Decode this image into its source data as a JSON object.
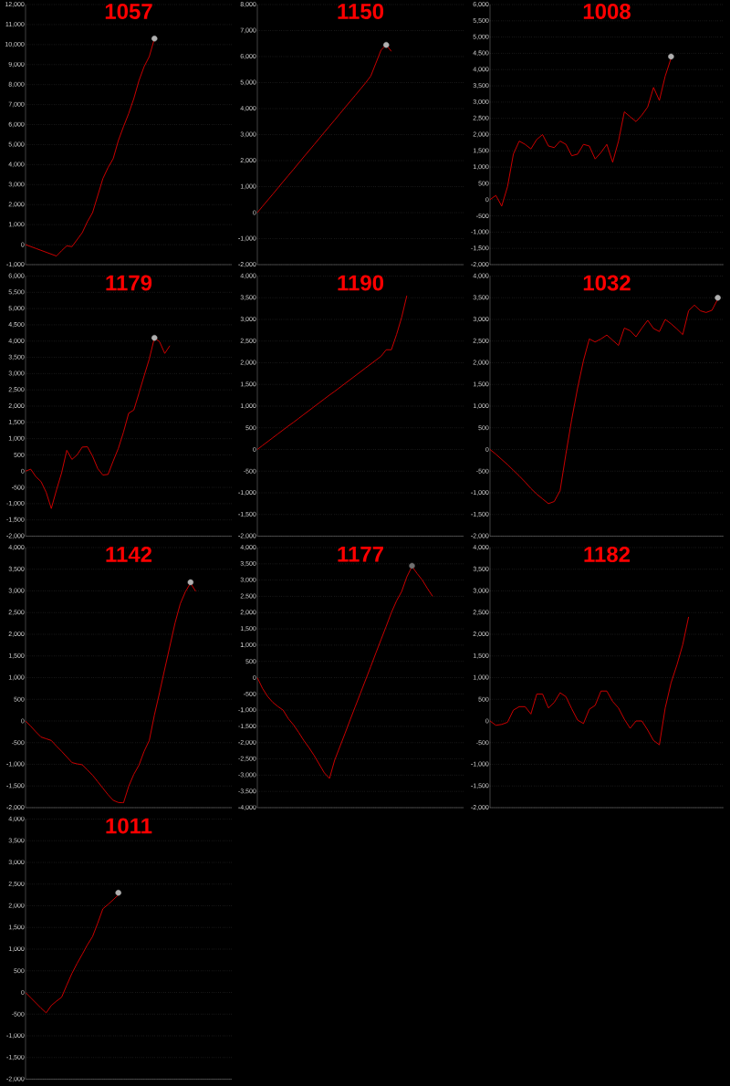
{
  "chart_data": [
    {
      "type": "line",
      "title": "1057",
      "grid": "y",
      "tick_labels": "y",
      "categories": [
        null,
        null,
        null,
        null,
        null,
        null,
        null,
        null,
        null,
        null,
        null,
        null,
        null,
        null,
        null,
        null,
        null,
        null,
        null,
        null,
        null,
        null,
        null,
        null,
        null,
        null,
        null,
        null,
        null,
        null,
        null,
        null,
        null,
        null,
        null,
        null,
        null,
        null,
        null,
        null,
        null
      ],
      "series": [
        {
          "type": "line",
          "color": "#e00000",
          "values": [
            0,
            -95,
            -190,
            -285,
            -380,
            -475,
            -570,
            -300,
            -60,
            -100,
            250,
            600,
            1150,
            1600,
            2450,
            3300,
            3850,
            4300,
            5200,
            5900,
            6550,
            7300,
            8200,
            8900,
            9400,
            10300,
            null,
            null,
            null,
            null,
            null,
            null,
            null,
            null,
            null,
            null,
            null,
            null,
            null,
            null,
            null
          ]
        },
        {
          "type": "scatter",
          "marker": "circle",
          "color": "#b0b0b0",
          "values": [
            null,
            null,
            null,
            null,
            null,
            null,
            null,
            null,
            null,
            null,
            null,
            null,
            null,
            null,
            null,
            null,
            null,
            null,
            null,
            null,
            null,
            null,
            null,
            null,
            null,
            10300,
            null,
            null,
            null,
            null,
            null,
            null,
            null,
            null,
            null,
            null,
            null,
            null,
            null,
            null,
            null
          ]
        }
      ],
      "ylim": [
        -1000,
        12000
      ],
      "yticks": [
        {
          "value": -1000,
          "label": "-1,000"
        },
        0,
        {
          "value": 1000,
          "label": "1,000"
        },
        {
          "value": 2000,
          "label": "2,000"
        },
        {
          "value": 3000,
          "label": "3,000"
        },
        {
          "value": 4000,
          "label": "4,000"
        },
        {
          "value": 5000,
          "label": "5,000"
        },
        {
          "value": 6000,
          "label": "6,000"
        },
        {
          "value": 7000,
          "label": "7,000"
        },
        {
          "value": 8000,
          "label": "8,000"
        },
        {
          "value": 9000,
          "label": "9,000"
        },
        {
          "value": 10000,
          "label": "10,000"
        },
        {
          "value": 11000,
          "label": "11,000"
        },
        {
          "value": 12000,
          "label": "12,000"
        }
      ]
    },
    {
      "type": "line",
      "title": "1150",
      "grid": "y",
      "tick_labels": "y",
      "categories": [
        null,
        null,
        null,
        null,
        null,
        null,
        null,
        null,
        null,
        null,
        null,
        null,
        null,
        null,
        null,
        null,
        null,
        null,
        null,
        null,
        null,
        null,
        null,
        null,
        null,
        null,
        null,
        null,
        null,
        null,
        null,
        null,
        null,
        null,
        null,
        null,
        null,
        null,
        null,
        null,
        null
      ],
      "series": [
        {
          "type": "line",
          "color": "#e00000",
          "values": [
            0,
            240,
            475,
            710,
            950,
            1190,
            1425,
            1660,
            1900,
            2140,
            2375,
            2610,
            2850,
            3090,
            3325,
            3560,
            3800,
            4040,
            4275,
            4510,
            4750,
            4990,
            5250,
            5750,
            6250,
            6450,
            6200,
            null,
            null,
            null,
            null,
            null,
            null,
            null,
            null,
            null,
            null,
            null,
            null,
            null,
            null
          ]
        },
        {
          "type": "scatter",
          "marker": "circle",
          "color": "#b0b0b0",
          "values": [
            null,
            null,
            null,
            null,
            null,
            null,
            null,
            null,
            null,
            null,
            null,
            null,
            null,
            null,
            null,
            null,
            null,
            null,
            null,
            null,
            null,
            null,
            null,
            null,
            null,
            6450,
            null,
            null,
            null,
            null,
            null,
            null,
            null,
            null,
            null,
            null,
            null,
            null,
            null,
            null,
            null
          ]
        }
      ],
      "ylim": [
        -2000,
        8000
      ],
      "yticks": [
        {
          "value": -2000,
          "label": "-2,000"
        },
        {
          "value": -1000,
          "label": "-1,000"
        },
        0,
        {
          "value": 1000,
          "label": "1,000"
        },
        {
          "value": 2000,
          "label": "2,000"
        },
        {
          "value": 3000,
          "label": "3,000"
        },
        {
          "value": 4000,
          "label": "4,000"
        },
        {
          "value": 5000,
          "label": "5,000"
        },
        {
          "value": 6000,
          "label": "6,000"
        },
        {
          "value": 7000,
          "label": "7,000"
        },
        {
          "value": 8000,
          "label": "8,000"
        }
      ]
    },
    {
      "type": "line",
      "title": "1008",
      "grid": "y",
      "tick_labels": "y",
      "categories": [
        null,
        null,
        null,
        null,
        null,
        null,
        null,
        null,
        null,
        null,
        null,
        null,
        null,
        null,
        null,
        null,
        null,
        null,
        null,
        null,
        null,
        null,
        null,
        null,
        null,
        null,
        null,
        null,
        null,
        null,
        null,
        null,
        null,
        null,
        null,
        null,
        null,
        null,
        null,
        null,
        null
      ],
      "series": [
        {
          "type": "line",
          "color": "#e00000",
          "values": [
            0,
            130,
            -200,
            400,
            1400,
            1800,
            1700,
            1560,
            1850,
            2000,
            1650,
            1600,
            1800,
            1700,
            1350,
            1400,
            1700,
            1650,
            1250,
            1450,
            1700,
            1150,
            1800,
            2700,
            2550,
            2400,
            2600,
            2850,
            3450,
            3050,
            3800,
            4350,
            null,
            null,
            null,
            null,
            null,
            null,
            null,
            null,
            null
          ]
        },
        {
          "type": "scatter",
          "marker": "circle",
          "color": "#b0b0b0",
          "values": [
            null,
            null,
            null,
            null,
            null,
            null,
            null,
            null,
            null,
            null,
            null,
            null,
            null,
            null,
            null,
            null,
            null,
            null,
            null,
            null,
            null,
            null,
            null,
            null,
            null,
            null,
            null,
            null,
            null,
            null,
            null,
            4400,
            null,
            null,
            null,
            null,
            null,
            null,
            null,
            null,
            null
          ]
        }
      ],
      "ylim": [
        -2000,
        6000
      ],
      "yticks": [
        {
          "value": -2000,
          "label": "-2,000"
        },
        {
          "value": -1500,
          "label": "-1,500"
        },
        {
          "value": -1000,
          "label": "-1,000"
        },
        -500,
        0,
        500,
        {
          "value": 1000,
          "label": "1,000"
        },
        {
          "value": 1500,
          "label": "1,500"
        },
        {
          "value": 2000,
          "label": "2,000"
        },
        {
          "value": 2500,
          "label": "2,500"
        },
        {
          "value": 3000,
          "label": "3,000"
        },
        {
          "value": 3500,
          "label": "3,500"
        },
        {
          "value": 4000,
          "label": "4,000"
        },
        {
          "value": 4500,
          "label": "4,500"
        },
        {
          "value": 5000,
          "label": "5,000"
        },
        {
          "value": 5500,
          "label": "5,500"
        },
        {
          "value": 6000,
          "label": "6,000"
        }
      ]
    },
    {
      "type": "line",
      "title": "1179",
      "grid": "y",
      "tick_labels": "y",
      "categories": [
        null,
        null,
        null,
        null,
        null,
        null,
        null,
        null,
        null,
        null,
        null,
        null,
        null,
        null,
        null,
        null,
        null,
        null,
        null,
        null,
        null,
        null,
        null,
        null,
        null,
        null,
        null,
        null,
        null,
        null,
        null,
        null,
        null,
        null,
        null,
        null,
        null,
        null,
        null,
        null,
        null
      ],
      "series": [
        {
          "type": "line",
          "color": "#e00000",
          "values": [
            0,
            60,
            -170,
            -320,
            -650,
            -1150,
            -580,
            -50,
            640,
            360,
            500,
            740,
            750,
            460,
            80,
            -120,
            -100,
            310,
            700,
            1200,
            1780,
            1880,
            2400,
            2930,
            3450,
            4100,
            3980,
            3620,
            3860,
            null,
            null,
            null,
            null,
            null,
            null,
            null,
            null,
            null,
            null,
            null,
            null
          ]
        },
        {
          "type": "scatter",
          "marker": "circle",
          "color": "#b0b0b0",
          "values": [
            null,
            null,
            null,
            null,
            null,
            null,
            null,
            null,
            null,
            null,
            null,
            null,
            null,
            null,
            null,
            null,
            null,
            null,
            null,
            null,
            null,
            null,
            null,
            null,
            null,
            4100,
            null,
            null,
            null,
            null,
            null,
            null,
            null,
            null,
            null,
            null,
            null,
            null,
            null,
            null,
            null
          ]
        }
      ],
      "ylim": [
        -2000,
        6000
      ],
      "yticks": [
        {
          "value": -2000,
          "label": "-2,000"
        },
        {
          "value": -1500,
          "label": "-1,500"
        },
        {
          "value": -1000,
          "label": "-1,000"
        },
        -500,
        0,
        500,
        {
          "value": 1000,
          "label": "1,000"
        },
        {
          "value": 1500,
          "label": "1,500"
        },
        {
          "value": 2000,
          "label": "2,000"
        },
        {
          "value": 2500,
          "label": "2,500"
        },
        {
          "value": 3000,
          "label": "3,000"
        },
        {
          "value": 3500,
          "label": "3,500"
        },
        {
          "value": 4000,
          "label": "4,000"
        },
        {
          "value": 4500,
          "label": "4,500"
        },
        {
          "value": 5000,
          "label": "5,000"
        },
        {
          "value": 5500,
          "label": "5,500"
        },
        {
          "value": 6000,
          "label": "6,000"
        }
      ]
    },
    {
      "type": "line",
      "title": "1190",
      "grid": "y",
      "tick_labels": "y",
      "categories": [
        null,
        null,
        null,
        null,
        null,
        null,
        null,
        null,
        null,
        null,
        null,
        null,
        null,
        null,
        null,
        null,
        null,
        null,
        null,
        null,
        null,
        null,
        null,
        null,
        null,
        null,
        null,
        null,
        null,
        null,
        null,
        null,
        null,
        null,
        null,
        null,
        null,
        null,
        null,
        null,
        null
      ],
      "series": [
        {
          "type": "line",
          "color": "#e00000",
          "values": [
            0,
            90,
            180,
            270,
            360,
            450,
            540,
            625,
            715,
            805,
            895,
            985,
            1075,
            1165,
            1255,
            1340,
            1430,
            1520,
            1610,
            1700,
            1790,
            1880,
            1970,
            2060,
            2150,
            2300,
            2300,
            2650,
            3050,
            3550,
            null,
            null,
            null,
            null,
            null,
            null,
            null,
            null,
            null,
            null,
            null
          ]
        }
      ],
      "ylim": [
        -2000,
        4000
      ],
      "yticks": [
        {
          "value": -2000,
          "label": "-2,000"
        },
        {
          "value": -1500,
          "label": "-1,500"
        },
        {
          "value": -1000,
          "label": "-1,000"
        },
        -500,
        0,
        500,
        {
          "value": 1000,
          "label": "1,000"
        },
        {
          "value": 1500,
          "label": "1,500"
        },
        {
          "value": 2000,
          "label": "2,000"
        },
        {
          "value": 2500,
          "label": "2,500"
        },
        {
          "value": 3000,
          "label": "3,000"
        },
        {
          "value": 3500,
          "label": "3,500"
        },
        {
          "value": 4000,
          "label": "4,000"
        }
      ]
    },
    {
      "type": "line",
      "title": "1032",
      "grid": "y",
      "tick_labels": "y",
      "categories": [
        null,
        null,
        null,
        null,
        null,
        null,
        null,
        null,
        null,
        null,
        null,
        null,
        null,
        null,
        null,
        null,
        null,
        null,
        null,
        null,
        null,
        null,
        null,
        null,
        null,
        null,
        null,
        null,
        null,
        null,
        null,
        null,
        null,
        null,
        null,
        null,
        null,
        null,
        null,
        null,
        null
      ],
      "series": [
        {
          "type": "line",
          "color": "#e00000",
          "values": [
            0,
            -110,
            -230,
            -350,
            -480,
            -610,
            -750,
            -900,
            -1030,
            -1140,
            -1250,
            -1200,
            -950,
            -100,
            700,
            1420,
            2050,
            2550,
            2480,
            2550,
            2640,
            2520,
            2400,
            2800,
            2740,
            2600,
            2800,
            2980,
            2790,
            2720,
            3000,
            2900,
            2780,
            2650,
            3200,
            3330,
            3200,
            3160,
            3210,
            3470,
            null
          ]
        },
        {
          "type": "scatter",
          "marker": "circle",
          "color": "#b0b0b0",
          "values": [
            null,
            null,
            null,
            null,
            null,
            null,
            null,
            null,
            null,
            null,
            null,
            null,
            null,
            null,
            null,
            null,
            null,
            null,
            null,
            null,
            null,
            null,
            null,
            null,
            null,
            null,
            null,
            null,
            null,
            null,
            null,
            null,
            null,
            null,
            null,
            null,
            null,
            null,
            null,
            3500,
            null
          ]
        }
      ],
      "ylim": [
        -2000,
        4000
      ],
      "yticks": [
        {
          "value": -2000,
          "label": "-2,000"
        },
        {
          "value": -1500,
          "label": "-1,500"
        },
        {
          "value": -1000,
          "label": "-1,000"
        },
        -500,
        0,
        500,
        {
          "value": 1000,
          "label": "1,000"
        },
        {
          "value": 1500,
          "label": "1,500"
        },
        {
          "value": 2000,
          "label": "2,000"
        },
        {
          "value": 2500,
          "label": "2,500"
        },
        {
          "value": 3000,
          "label": "3,000"
        },
        {
          "value": 3500,
          "label": "3,500"
        },
        {
          "value": 4000,
          "label": "4,000"
        }
      ]
    },
    {
      "type": "line",
      "title": "1142",
      "grid": "y",
      "tick_labels": "y",
      "categories": [
        null,
        null,
        null,
        null,
        null,
        null,
        null,
        null,
        null,
        null,
        null,
        null,
        null,
        null,
        null,
        null,
        null,
        null,
        null,
        null,
        null,
        null,
        null,
        null,
        null,
        null,
        null,
        null,
        null,
        null,
        null,
        null,
        null,
        null,
        null,
        null,
        null,
        null,
        null,
        null,
        null
      ],
      "series": [
        {
          "type": "line",
          "color": "#e00000",
          "values": [
            0,
            -120,
            -250,
            -370,
            -410,
            -450,
            -580,
            -700,
            -830,
            -960,
            -990,
            -1010,
            -1130,
            -1250,
            -1400,
            -1550,
            -1700,
            -1830,
            -1880,
            -1890,
            -1510,
            -1230,
            -1020,
            -700,
            -450,
            140,
            660,
            1200,
            1730,
            2260,
            2700,
            2980,
            3180,
            2990,
            null,
            null,
            null,
            null,
            null,
            null,
            null
          ]
        },
        {
          "type": "scatter",
          "marker": "circle",
          "color": "#b0b0b0",
          "values": [
            null,
            null,
            null,
            null,
            null,
            null,
            null,
            null,
            null,
            null,
            null,
            null,
            null,
            null,
            null,
            null,
            null,
            null,
            null,
            null,
            null,
            null,
            null,
            null,
            null,
            null,
            null,
            null,
            null,
            null,
            null,
            null,
            3200,
            null,
            null,
            null,
            null,
            null,
            null,
            null,
            null
          ]
        }
      ],
      "ylim": [
        -2000,
        4000
      ],
      "yticks": [
        {
          "value": -2000,
          "label": "-2,000"
        },
        {
          "value": -1500,
          "label": "-1,500"
        },
        {
          "value": -1000,
          "label": "-1,000"
        },
        -500,
        0,
        500,
        {
          "value": 1000,
          "label": "1,000"
        },
        {
          "value": 1500,
          "label": "1,500"
        },
        {
          "value": 2000,
          "label": "2,000"
        },
        {
          "value": 2500,
          "label": "2,500"
        },
        {
          "value": 3000,
          "label": "3,000"
        },
        {
          "value": 3500,
          "label": "3,500"
        },
        {
          "value": 4000,
          "label": "4,000"
        }
      ]
    },
    {
      "type": "line",
      "title": "1177",
      "grid": "y",
      "tick_labels": "y",
      "categories": [
        null,
        null,
        null,
        null,
        null,
        null,
        null,
        null,
        null,
        null,
        null,
        null,
        null,
        null,
        null,
        null,
        null,
        null,
        null,
        null,
        null,
        null,
        null,
        null,
        null,
        null,
        null,
        null,
        null,
        null,
        null,
        null,
        null,
        null,
        null,
        null,
        null,
        null,
        null,
        null,
        null
      ],
      "series": [
        {
          "type": "line",
          "color": "#e00000",
          "values": [
            0,
            -330,
            -580,
            -760,
            -890,
            -1000,
            -1260,
            -1450,
            -1680,
            -1930,
            -2150,
            -2390,
            -2660,
            -2930,
            -3100,
            -2540,
            -2130,
            -1720,
            -1300,
            -890,
            -480,
            -70,
            340,
            760,
            1170,
            1580,
            2000,
            2360,
            2650,
            3100,
            3420,
            3200,
            3000,
            2740,
            2500,
            null,
            null,
            null,
            null,
            null,
            null
          ]
        },
        {
          "type": "scatter",
          "marker": "circle",
          "color": "#707070",
          "values": [
            null,
            null,
            null,
            null,
            null,
            null,
            null,
            null,
            null,
            null,
            null,
            null,
            null,
            null,
            null,
            null,
            null,
            null,
            null,
            null,
            null,
            null,
            null,
            null,
            null,
            null,
            null,
            null,
            null,
            null,
            3440,
            null,
            null,
            null,
            null,
            null,
            null,
            null,
            null,
            null,
            null
          ]
        }
      ],
      "ylim": [
        -4000,
        4000
      ],
      "yticks": [
        {
          "value": -4000,
          "label": "-4,000"
        },
        {
          "value": -3500,
          "label": "-3,500"
        },
        {
          "value": -3000,
          "label": "-3,000"
        },
        {
          "value": -2500,
          "label": "-2,500"
        },
        {
          "value": -2000,
          "label": "-2,000"
        },
        {
          "value": -1500,
          "label": "-1,500"
        },
        {
          "value": -1000,
          "label": "-1,000"
        },
        -500,
        0,
        500,
        {
          "value": 1000,
          "label": "1,000"
        },
        {
          "value": 1500,
          "label": "1,500"
        },
        {
          "value": 2000,
          "label": "2,000"
        },
        {
          "value": 2500,
          "label": "2,500"
        },
        {
          "value": 3000,
          "label": "3,000"
        },
        {
          "value": 3500,
          "label": "3,500"
        },
        {
          "value": 4000,
          "label": "4,000"
        }
      ]
    },
    {
      "type": "line",
      "title": "1182",
      "grid": "y",
      "tick_labels": "y",
      "categories": [
        null,
        null,
        null,
        null,
        null,
        null,
        null,
        null,
        null,
        null,
        null,
        null,
        null,
        null,
        null,
        null,
        null,
        null,
        null,
        null,
        null,
        null,
        null,
        null,
        null,
        null,
        null,
        null,
        null,
        null,
        null,
        null,
        null,
        null,
        null,
        null,
        null,
        null,
        null,
        null,
        null
      ],
      "series": [
        {
          "type": "line",
          "color": "#e00000",
          "values": [
            0,
            -100,
            -80,
            -30,
            250,
            330,
            330,
            160,
            620,
            620,
            300,
            430,
            650,
            560,
            280,
            20,
            -60,
            270,
            360,
            690,
            690,
            450,
            300,
            40,
            -170,
            0,
            0,
            -210,
            -450,
            -550,
            300,
            880,
            1290,
            1760,
            2400,
            null,
            null,
            null,
            null,
            null,
            null
          ]
        }
      ],
      "ylim": [
        -2000,
        4000
      ],
      "yticks": [
        {
          "value": -2000,
          "label": "-2,000"
        },
        {
          "value": -1500,
          "label": "-1,500"
        },
        {
          "value": -1000,
          "label": "-1,000"
        },
        -500,
        0,
        500,
        {
          "value": 1000,
          "label": "1,000"
        },
        {
          "value": 1500,
          "label": "1,500"
        },
        {
          "value": 2000,
          "label": "2,000"
        },
        {
          "value": 2500,
          "label": "2,500"
        },
        {
          "value": 3000,
          "label": "3,000"
        },
        {
          "value": 3500,
          "label": "3,500"
        },
        {
          "value": 4000,
          "label": "4,000"
        }
      ]
    },
    {
      "type": "line",
      "title": "1011",
      "grid": "y",
      "tick_labels": "y",
      "categories": [
        null,
        null,
        null,
        null,
        null,
        null,
        null,
        null,
        null,
        null,
        null,
        null,
        null,
        null,
        null,
        null,
        null,
        null,
        null,
        null,
        null,
        null,
        null,
        null,
        null,
        null,
        null,
        null,
        null,
        null,
        null,
        null,
        null,
        null,
        null,
        null,
        null,
        null,
        null,
        null,
        null
      ],
      "series": [
        {
          "type": "line",
          "color": "#e00000",
          "values": [
            0,
            -120,
            -240,
            -360,
            -470,
            -300,
            -200,
            -110,
            170,
            440,
            670,
            880,
            1100,
            1290,
            1600,
            1930,
            2030,
            2140,
            2250,
            null,
            null,
            null,
            null,
            null,
            null,
            null,
            null,
            null,
            null,
            null,
            null,
            null,
            null,
            null,
            null,
            null,
            null,
            null,
            null,
            null,
            null
          ]
        },
        {
          "type": "scatter",
          "marker": "circle",
          "color": "#b0b0b0",
          "values": [
            null,
            null,
            null,
            null,
            null,
            null,
            null,
            null,
            null,
            null,
            null,
            null,
            null,
            null,
            null,
            null,
            null,
            null,
            2300,
            null,
            null,
            null,
            null,
            null,
            null,
            null,
            null,
            null,
            null,
            null,
            null,
            null,
            null,
            null,
            null,
            null,
            null,
            null,
            null,
            null,
            null
          ]
        }
      ],
      "ylim": [
        -2000,
        4000
      ],
      "yticks": [
        {
          "value": -2000,
          "label": "-2,000"
        },
        {
          "value": -1500,
          "label": "-1,500"
        },
        {
          "value": -1000,
          "label": "-1,000"
        },
        -500,
        0,
        500,
        {
          "value": 1000,
          "label": "1,000"
        },
        {
          "value": 1500,
          "label": "1,500"
        },
        {
          "value": 2000,
          "label": "2,000"
        },
        {
          "value": 2500,
          "label": "2,500"
        },
        {
          "value": 3000,
          "label": "3,000"
        },
        {
          "value": 3500,
          "label": "3,500"
        },
        {
          "value": 4000,
          "label": "4,000"
        }
      ]
    }
  ]
}
